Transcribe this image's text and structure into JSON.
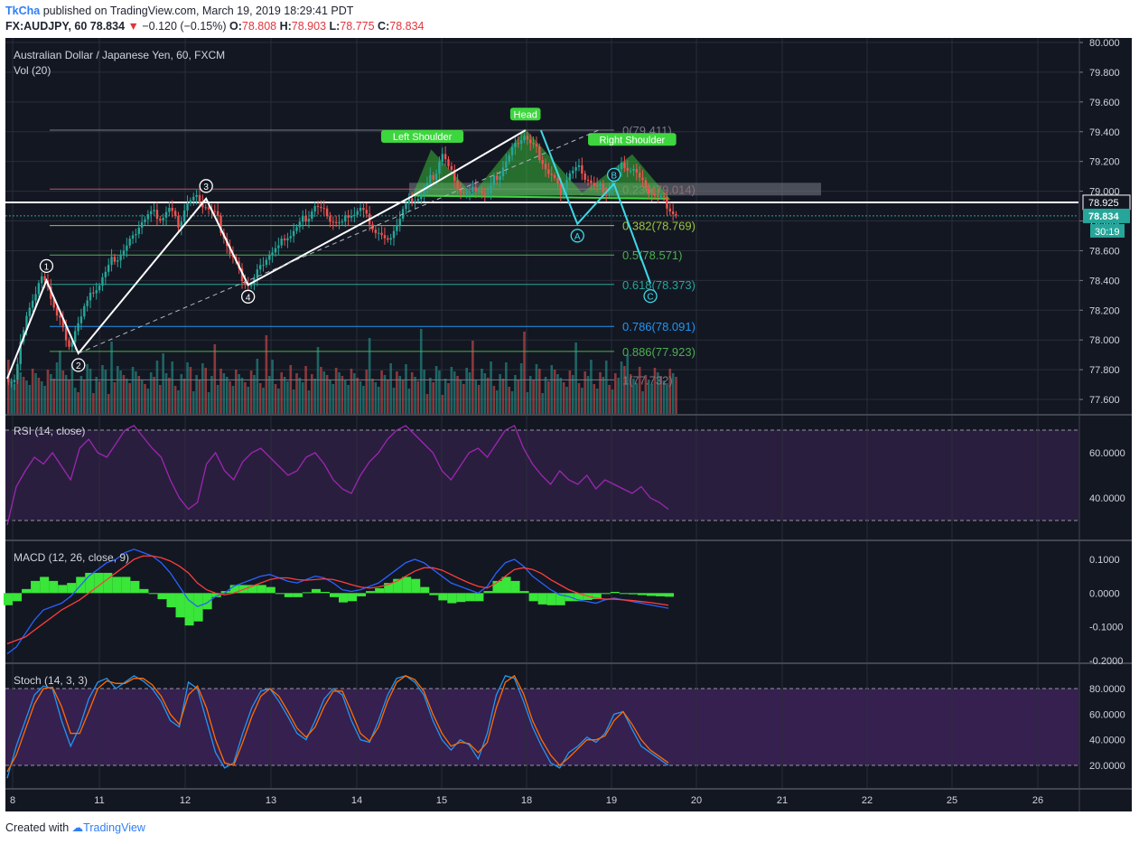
{
  "header": {
    "user": "TkCha",
    "published": "published on TradingView.com, March 19, 2019 18:29:41 PDT",
    "symbol_line": "FX:AUDJPY, 60",
    "last": "78.834",
    "change_arrow": "▼",
    "change": "−0.120 (−0.15%)",
    "o_label": "O:",
    "o": "78.808",
    "h_label": "H:",
    "h": "78.903",
    "l_label": "L:",
    "l": "78.775",
    "c_label": "C:",
    "c": "78.834"
  },
  "footer": {
    "created": "Created with",
    "brand": "TradingView"
  },
  "colors": {
    "background": "#131722",
    "rsi_band": "#2a1e3e",
    "stoch_band": "#35204f",
    "up": "#26a69a",
    "down": "#ef5350",
    "pattern_green": "#3ed63e",
    "elliott_cyan": "#3fd9e6",
    "rsi_line": "#9c27b0",
    "macd_line": "#2962ff",
    "signal_line": "#ff3d3d",
    "stoch_k": "#2196f3",
    "stoch_d": "#ff6d00"
  },
  "chart_data": [
    {
      "type": "candlestick",
      "title": "Australian Dollar / Japanese Yen, 60, FXCM",
      "volume_label": "Vol (20)",
      "ylim": [
        77.5,
        80.0
      ],
      "y_ticks": [
        "80.000",
        "79.800",
        "79.600",
        "79.400",
        "79.200",
        "79.000",
        "78.800",
        "78.600",
        "78.400",
        "78.200",
        "78.000",
        "77.800",
        "77.600"
      ],
      "x_ticks": [
        "8",
        "11",
        "12",
        "13",
        "14",
        "15",
        "18",
        "19",
        "20",
        "21",
        "22",
        "25",
        "26"
      ],
      "current_price": "78.834",
      "horizontal_line": "78.925",
      "countdown": "30:19",
      "close_path": [
        77.74,
        78.05,
        78.28,
        78.42,
        78.3,
        78.15,
        77.93,
        78.12,
        78.25,
        78.35,
        78.45,
        78.55,
        78.6,
        78.68,
        78.8,
        78.85,
        78.82,
        78.88,
        78.78,
        78.92,
        78.95,
        78.9,
        78.85,
        78.7,
        78.55,
        78.42,
        78.37,
        78.48,
        78.58,
        78.62,
        78.7,
        78.75,
        78.82,
        78.9,
        78.86,
        78.8,
        78.78,
        78.85,
        78.88,
        78.8,
        78.72,
        78.65,
        78.78,
        78.9,
        78.95,
        79.0,
        79.1,
        79.25,
        79.12,
        79.0,
        78.98,
        79.02,
        78.98,
        79.1,
        79.2,
        79.3,
        79.38,
        79.3,
        79.2,
        79.1,
        79.0,
        79.12,
        79.15,
        79.08,
        79.02,
        79.0,
        79.1,
        79.18,
        79.15,
        79.05,
        78.99,
        78.95,
        78.88,
        78.834
      ],
      "fibonacci": [
        {
          "label": "0(79.411)"
        },
        {
          "label": "0.236(79.014)"
        },
        {
          "label": "0.382(78.769)"
        },
        {
          "label": "0.5(78.571)"
        },
        {
          "label": "0.618(78.373)"
        },
        {
          "label": "0.786(78.091)"
        },
        {
          "label": "0.886(77.923)"
        },
        {
          "label": "1(77.732)"
        }
      ],
      "annotations": [
        "Left Shoulder",
        "Head",
        "Right Shoulder"
      ],
      "wave_labels": [
        "1",
        "2",
        "3",
        "4",
        "A",
        "B",
        "C"
      ]
    },
    {
      "type": "line",
      "title": "RSI (14, close)",
      "ylim": [
        27,
        74
      ],
      "y_ticks": [
        "60.0000",
        "40.0000"
      ],
      "band": [
        30,
        70
      ],
      "values": [
        28,
        45,
        52,
        58,
        55,
        60,
        54,
        48,
        62,
        66,
        60,
        58,
        64,
        70,
        72,
        67,
        62,
        58,
        48,
        40,
        35,
        38,
        55,
        60,
        52,
        48,
        56,
        60,
        62,
        58,
        54,
        50,
        52,
        58,
        60,
        55,
        48,
        44,
        42,
        50,
        56,
        60,
        66,
        70,
        72,
        68,
        64,
        60,
        52,
        48,
        54,
        60,
        62,
        58,
        64,
        70,
        72,
        62,
        55,
        50,
        46,
        52,
        48,
        46,
        50,
        44,
        48,
        46,
        44,
        42,
        45,
        40,
        38,
        35
      ]
    },
    {
      "type": "line",
      "title": "MACD (12, 26, close, 9)",
      "ylim": [
        -0.2,
        0.12
      ],
      "y_ticks": [
        "0.1000",
        "0.0000",
        "-0.1000",
        "-0.2000"
      ],
      "macd": [
        -0.18,
        -0.16,
        -0.12,
        -0.08,
        -0.05,
        -0.04,
        -0.03,
        -0.01,
        0.02,
        0.05,
        0.07,
        0.09,
        0.1,
        0.12,
        0.13,
        0.12,
        0.11,
        0.09,
        0.06,
        0.02,
        -0.02,
        -0.04,
        -0.03,
        -0.01,
        0.0,
        0.02,
        0.03,
        0.04,
        0.05,
        0.055,
        0.045,
        0.035,
        0.03,
        0.04,
        0.05,
        0.045,
        0.03,
        0.01,
        0.005,
        0.01,
        0.02,
        0.03,
        0.05,
        0.07,
        0.09,
        0.1,
        0.09,
        0.07,
        0.05,
        0.03,
        0.02,
        0.01,
        0.0,
        0.02,
        0.06,
        0.09,
        0.1,
        0.08,
        0.05,
        0.03,
        0.01,
        -0.005,
        -0.01,
        -0.02,
        -0.025,
        -0.03,
        -0.02,
        -0.015,
        -0.02,
        -0.025,
        -0.03,
        -0.035,
        -0.04,
        -0.045
      ],
      "signal": [
        -0.15,
        -0.14,
        -0.13,
        -0.11,
        -0.09,
        -0.07,
        -0.05,
        -0.035,
        -0.02,
        0.0,
        0.02,
        0.04,
        0.06,
        0.08,
        0.1,
        0.11,
        0.11,
        0.105,
        0.095,
        0.08,
        0.06,
        0.03,
        0.01,
        0.0,
        -0.005,
        0.0,
        0.01,
        0.02,
        0.03,
        0.04,
        0.045,
        0.045,
        0.04,
        0.038,
        0.04,
        0.042,
        0.04,
        0.033,
        0.025,
        0.018,
        0.015,
        0.018,
        0.025,
        0.035,
        0.05,
        0.065,
        0.075,
        0.075,
        0.068,
        0.055,
        0.042,
        0.03,
        0.02,
        0.015,
        0.03,
        0.05,
        0.07,
        0.075,
        0.07,
        0.058,
        0.04,
        0.025,
        0.01,
        0.0,
        -0.008,
        -0.015,
        -0.018,
        -0.018,
        -0.02,
        -0.022,
        -0.025,
        -0.028,
        -0.032,
        -0.036
      ]
    },
    {
      "type": "line",
      "title": "Stoch (14, 3, 3)",
      "ylim": [
        5,
        96
      ],
      "y_ticks": [
        "80.0000",
        "60.0000",
        "40.0000",
        "20.0000"
      ],
      "band": [
        20,
        80
      ],
      "k": [
        10,
        35,
        55,
        75,
        82,
        80,
        55,
        35,
        50,
        72,
        85,
        88,
        80,
        85,
        90,
        86,
        80,
        70,
        55,
        50,
        85,
        80,
        55,
        30,
        18,
        22,
        45,
        65,
        78,
        80,
        70,
        58,
        45,
        40,
        55,
        72,
        80,
        75,
        55,
        40,
        38,
        55,
        75,
        88,
        90,
        85,
        75,
        55,
        40,
        32,
        40,
        36,
        25,
        45,
        75,
        90,
        88,
        70,
        50,
        35,
        22,
        18,
        30,
        35,
        42,
        38,
        45,
        60,
        62,
        48,
        35,
        30,
        25,
        20
      ],
      "d": [
        15,
        28,
        48,
        68,
        80,
        81,
        66,
        45,
        45,
        62,
        80,
        86,
        84,
        84,
        88,
        88,
        83,
        74,
        60,
        52,
        75,
        82,
        65,
        40,
        22,
        20,
        38,
        58,
        74,
        80,
        74,
        62,
        49,
        42,
        50,
        66,
        78,
        78,
        62,
        45,
        39,
        50,
        70,
        85,
        90,
        87,
        78,
        60,
        45,
        35,
        38,
        37,
        30,
        38,
        65,
        85,
        90,
        76,
        55,
        40,
        28,
        20,
        26,
        33,
        40,
        40,
        43,
        55,
        62,
        52,
        40,
        32,
        27,
        22
      ]
    }
  ]
}
